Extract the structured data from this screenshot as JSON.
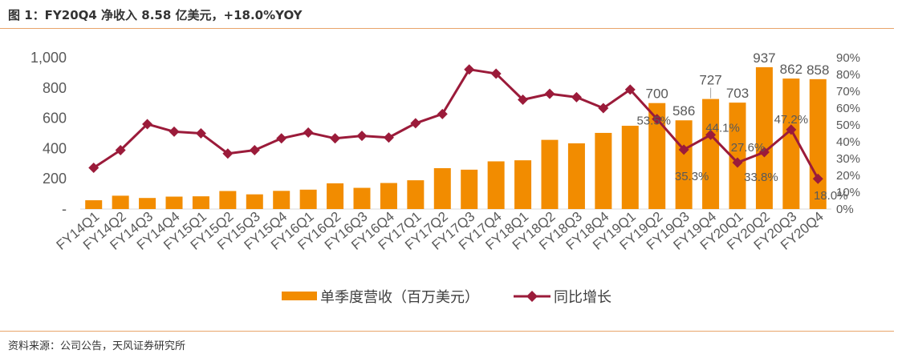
{
  "title": "图 1：FY20Q4 净收入 8.58 亿美元，+18.0%YOY",
  "source": "资料来源：公司公告，天风证券研究所",
  "colors": {
    "bar": "#f28c00",
    "line": "#9b1b3a",
    "rule": "#e8a46a",
    "text": "#595959"
  },
  "chart_data": {
    "type": "bar+line",
    "categories": [
      "FY14Q1",
      "FY14Q2",
      "FY14Q3",
      "FY14Q4",
      "FY15Q1",
      "FY15Q2",
      "FY15Q3",
      "FY15Q4",
      "FY16Q1",
      "FY16Q2",
      "FY16Q3",
      "FY16Q4",
      "FY17Q1",
      "FY17Q2",
      "FY17Q3",
      "FY17Q4",
      "FY18Q1",
      "FY18Q2",
      "FY18Q3",
      "FY18Q4",
      "FY19Q1",
      "FY19Q2",
      "FY19Q3",
      "FY19Q4",
      "FY20Q1",
      "FY20Q2",
      "FY20Q3",
      "FY20Q4"
    ],
    "series": [
      {
        "name": "单季度营收（百万美元）",
        "type": "bar",
        "axis": "left",
        "values": [
          58,
          88,
          73,
          82,
          84,
          119,
          97,
          120,
          128,
          170,
          140,
          172,
          190,
          270,
          260,
          315,
          322,
          457,
          434,
          503,
          550,
          700,
          586,
          727,
          703,
          937,
          862,
          858
        ]
      },
      {
        "name": "同比增长",
        "type": "line",
        "axis": "right",
        "values": [
          24.5,
          35.0,
          50.5,
          46.0,
          45.0,
          33.0,
          35.0,
          42.0,
          45.5,
          42.0,
          43.5,
          42.5,
          51.0,
          56.5,
          83.0,
          80.5,
          65.0,
          68.5,
          66.5,
          60.0,
          71.0,
          53.5,
          35.3,
          44.1,
          27.6,
          33.8,
          47.2,
          18.0
        ]
      }
    ],
    "bar_labels": [
      {
        "index": 21,
        "text": "700"
      },
      {
        "index": 22,
        "text": "586"
      },
      {
        "index": 23,
        "text": "727"
      },
      {
        "index": 24,
        "text": "703"
      },
      {
        "index": 25,
        "text": "937"
      },
      {
        "index": 26,
        "text": "862"
      },
      {
        "index": 27,
        "text": "858"
      }
    ],
    "line_labels": [
      {
        "index": 21,
        "text": "53.5%"
      },
      {
        "index": 22,
        "text": "35.3%"
      },
      {
        "index": 23,
        "text": "44.1%"
      },
      {
        "index": 24,
        "text": "27.6%"
      },
      {
        "index": 25,
        "text": "33.8%"
      },
      {
        "index": 26,
        "text": "47.2%"
      },
      {
        "index": 27,
        "text": "18.0%"
      }
    ],
    "y_left": {
      "min": 0,
      "max": 1000,
      "step": 200,
      "ticks": [
        "-",
        "200",
        "400",
        "600",
        "800",
        "1,000"
      ]
    },
    "y_right": {
      "min": 0,
      "max": 90,
      "step": 10,
      "ticks": [
        "0%",
        "10%",
        "20%",
        "30%",
        "40%",
        "50%",
        "60%",
        "70%",
        "80%",
        "90%"
      ]
    },
    "legend": {
      "position": "bottom",
      "items": [
        "单季度营收（百万美元）",
        "同比增长"
      ]
    },
    "grid": false
  }
}
